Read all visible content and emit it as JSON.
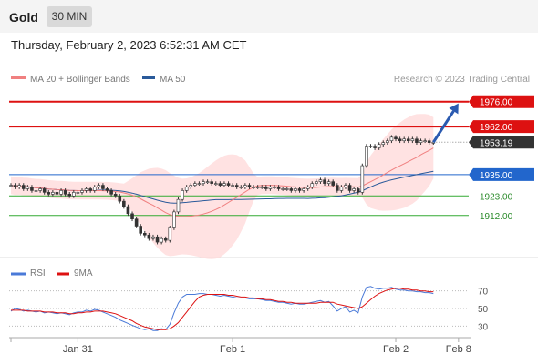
{
  "header": {
    "title": "Gold",
    "timeframe": "30 MIN"
  },
  "timestamp": "Thursday, February 2, 2023 6:52:31 AM CET",
  "legend": {
    "ma20": "MA 20 + Bollinger Bands",
    "ma50": "MA 50",
    "credit": "Research © 2023 Trading Central"
  },
  "colors": {
    "resistance": "#dd1111",
    "support_blue": "#2266cc",
    "support_green": "#33aa33",
    "current": "#333333",
    "ma20": "#f08080",
    "ma50": "#2a5a9a",
    "band_fill": "#ffd8d8",
    "rsi": "#4a7ad8",
    "rsi_ma": "#dd1111",
    "arrow": "#2a5ab0"
  },
  "chart_data": [
    {
      "type": "candlestick",
      "price_levels": [
        {
          "label": "1976.00",
          "value": 1976.0,
          "style": "resistance"
        },
        {
          "label": "1962.00",
          "value": 1962.0,
          "style": "resistance"
        },
        {
          "label": "1953.19",
          "value": 1953.19,
          "style": "current"
        },
        {
          "label": "1935.00",
          "value": 1935.0,
          "style": "support_blue"
        },
        {
          "label": "1923.00",
          "value": 1923.0,
          "style": "support_green"
        },
        {
          "label": "1912.00",
          "value": 1912.0,
          "style": "support_green"
        }
      ],
      "ylim": [
        1895,
        1982
      ],
      "x_ticks": [
        {
          "label": "Jan 31",
          "index": 16
        },
        {
          "label": "Feb 1",
          "index": 53
        },
        {
          "label": "Feb 2",
          "index": 92
        },
        {
          "label": "Feb 8",
          "index": 107
        }
      ],
      "x_count": 110,
      "last_index": 101,
      "closes": [
        1929,
        1928,
        1929,
        1927,
        1928,
        1926,
        1926,
        1927,
        1925,
        1924,
        1925,
        1924,
        1926,
        1924,
        1923,
        1925,
        1925,
        1926,
        1927,
        1926,
        1928,
        1929,
        1927,
        1926,
        1924,
        1923,
        1920,
        1917,
        1913,
        1910,
        1906,
        1902,
        1901,
        1899,
        1900,
        1897,
        1899,
        1898,
        1905,
        1914,
        1921,
        1926,
        1928,
        1929,
        1930,
        1930,
        1931,
        1931,
        1930,
        1930,
        1929,
        1930,
        1929,
        1929,
        1928,
        1928,
        1929,
        1928,
        1928,
        1928,
        1928,
        1927,
        1928,
        1928,
        1927,
        1927,
        1927,
        1926,
        1927,
        1926,
        1927,
        1928,
        1930,
        1931,
        1932,
        1930,
        1931,
        1929,
        1926,
        1928,
        1929,
        1926,
        1927,
        1925,
        1940,
        1951,
        1951,
        1950,
        1952,
        1953,
        1954,
        1956,
        1955,
        1954,
        1955,
        1954,
        1955,
        1953,
        1954,
        1954,
        1953,
        1953.19
      ],
      "forecast_arrow": {
        "from_index": 101,
        "from_value": 1953.19,
        "to_index": 107,
        "to_value": 1975
      }
    },
    {
      "type": "line",
      "title": "RSI",
      "series": [
        {
          "name": "RSI",
          "values": [
            47,
            50,
            49,
            47,
            48,
            47,
            46,
            47,
            45,
            46,
            45,
            44,
            45,
            44,
            43,
            45,
            46,
            46,
            48,
            47,
            49,
            48,
            46,
            44,
            42,
            40,
            37,
            35,
            33,
            31,
            29,
            27,
            26,
            27,
            25,
            25,
            27,
            26,
            32,
            45,
            56,
            63,
            66,
            66,
            66,
            67,
            67,
            66,
            66,
            65,
            64,
            65,
            64,
            63,
            62,
            62,
            62,
            61,
            61,
            61,
            60,
            59,
            59,
            58,
            57,
            57,
            56,
            55,
            56,
            55,
            55,
            56,
            57,
            58,
            59,
            57,
            58,
            53,
            47,
            50,
            52,
            46,
            48,
            45,
            63,
            74,
            75,
            73,
            72,
            73,
            73,
            74,
            72,
            71,
            71,
            70,
            70,
            69,
            69,
            68,
            68,
            67
          ]
        },
        {
          "name": "9MA",
          "values": [
            48,
            48,
            48,
            48,
            47,
            47,
            47,
            47,
            46,
            46,
            46,
            45,
            45,
            45,
            44,
            44,
            45,
            45,
            46,
            46,
            47,
            47,
            47,
            46,
            45,
            44,
            42,
            40,
            38,
            36,
            33,
            31,
            29,
            28,
            27,
            26,
            26,
            26,
            27,
            30,
            34,
            40,
            46,
            52,
            58,
            63,
            65,
            66,
            66,
            66,
            66,
            66,
            65,
            65,
            64,
            63,
            63,
            62,
            62,
            61,
            61,
            60,
            60,
            59,
            58,
            58,
            57,
            57,
            56,
            56,
            56,
            56,
            56,
            56,
            57,
            57,
            57,
            57,
            55,
            54,
            53,
            52,
            51,
            50,
            52,
            56,
            60,
            64,
            67,
            69,
            71,
            72,
            73,
            73,
            72,
            72,
            71,
            71,
            70,
            70,
            69,
            69
          ]
        }
      ],
      "y_ticks": [
        "70",
        "50",
        "30"
      ],
      "ylim": [
        20,
        80
      ]
    }
  ]
}
